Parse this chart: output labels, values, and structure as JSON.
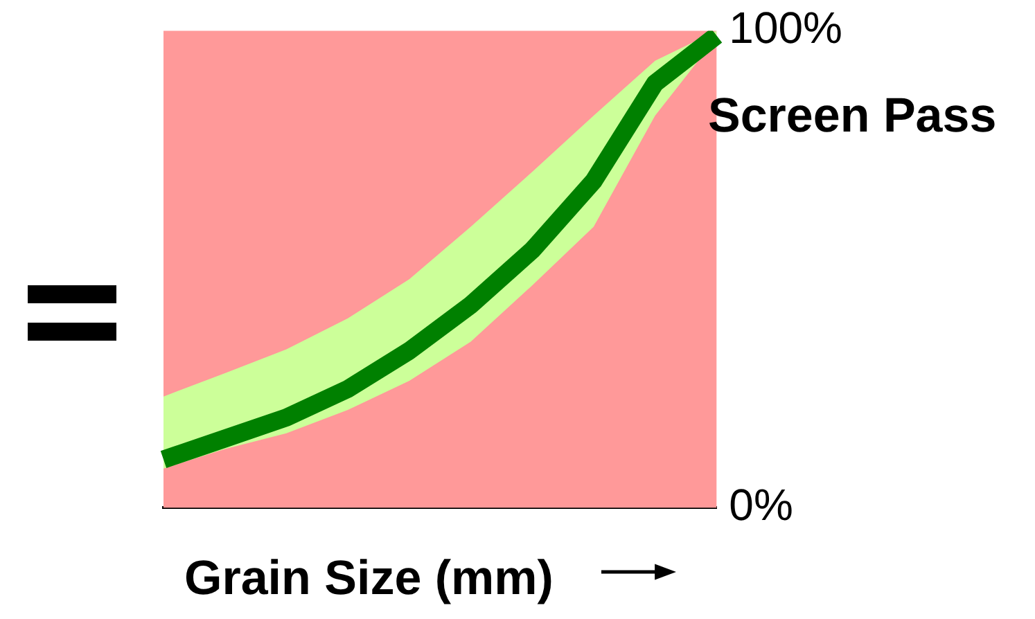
{
  "chart_data": {
    "type": "line",
    "xlabel": "Grain Size (mm)",
    "ylabel": "Screen Pass",
    "categories": [
      null,
      null,
      null,
      null,
      null,
      null,
      null,
      null,
      null,
      null
    ],
    "series": [
      {
        "color": "#008000",
        "values": [
          10.1,
          14.5,
          18.9,
          24.9,
          32.9,
          42.5,
          54,
          68.5,
          89,
          99
        ],
        "lower": [
          8.2,
          12.3,
          15.6,
          20.5,
          26.6,
          34.8,
          46.6,
          58.9,
          82.2,
          98.6
        ],
        "upper": [
          23.3,
          28.2,
          33.2,
          39.7,
          47.9,
          58.9,
          70.4,
          82.2,
          93.7,
          100
        ]
      }
    ],
    "ylim": [
      0,
      100
    ],
    "yticks": [
      {
        "value": 0,
        "label": "0%"
      },
      {
        "value": 100,
        "label": "100%"
      }
    ],
    "grid": false,
    "legend": false,
    "marker": "none",
    "line_style": "solid"
  }
}
